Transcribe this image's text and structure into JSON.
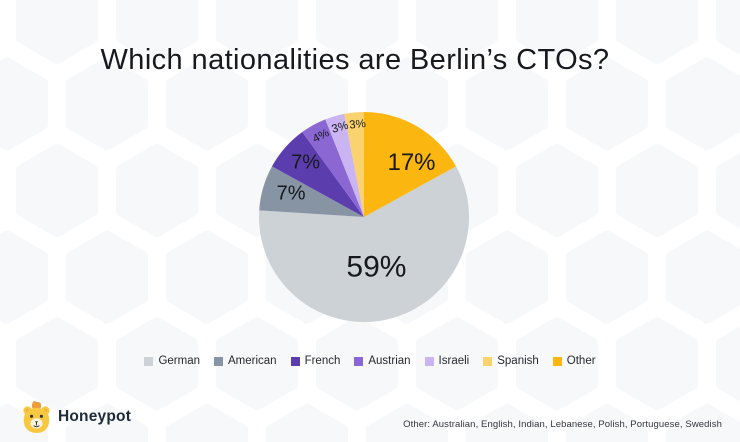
{
  "title": "Which nationalities are Berlin’s CTOs?",
  "chart_data": {
    "type": "pie",
    "title": "Which nationalities are Berlin’s CTOs?",
    "categories": [
      "German",
      "American",
      "French",
      "Austrian",
      "Israeli",
      "Spanish",
      "Other"
    ],
    "values": [
      59,
      7,
      7,
      4,
      3,
      3,
      17
    ],
    "unit": "%",
    "legend_position": "bottom",
    "start_angle_deg": 61.2,
    "clockwise": true,
    "radius_px": 105,
    "slices": [
      {
        "label": "German",
        "value": 59,
        "color": "#CDD2D7",
        "label_angle_deg": 166,
        "label_r_frac": 0.49,
        "label_font_px": 30,
        "label_rot_deg": 0
      },
      {
        "label": "American",
        "value": 7,
        "color": "#8794A4",
        "label_angle_deg": 288,
        "label_r_frac": 0.73,
        "label_font_px": 20,
        "label_rot_deg": 0
      },
      {
        "label": "French",
        "value": 7,
        "color": "#5C3DAD",
        "label_angle_deg": 313,
        "label_r_frac": 0.76,
        "label_font_px": 20,
        "label_rot_deg": 0
      },
      {
        "label": "Austrian",
        "value": 4,
        "color": "#8B67D3",
        "label_angle_deg": 332,
        "label_r_frac": 0.87,
        "label_font_px": 11.5,
        "label_rot_deg": -28
      },
      {
        "label": "Israeli",
        "value": 3,
        "color": "#CAB4F2",
        "label_angle_deg": 345,
        "label_r_frac": 0.88,
        "label_font_px": 11.5,
        "label_rot_deg": -16
      },
      {
        "label": "Spanish",
        "value": 3,
        "color": "#FBD36E",
        "label_angle_deg": 356,
        "label_r_frac": 0.88,
        "label_font_px": 11.5,
        "label_rot_deg": -6
      },
      {
        "label": "Other",
        "value": 17,
        "color": "#FBB70F",
        "label_angle_deg": 41,
        "label_r_frac": 0.69,
        "label_font_px": 24,
        "label_rot_deg": 0
      }
    ]
  },
  "footer": {
    "logo_text": "Honeypot",
    "note": "Other: Australian, English, Indian, Lebanese, Polish, Portuguese, Swedish"
  },
  "icons": {
    "brand": "honeypot-bear-icon"
  },
  "colors": {
    "background": "#FFFFFF",
    "hexagon": "#F7F8FA",
    "text_dark": "#17191E"
  }
}
